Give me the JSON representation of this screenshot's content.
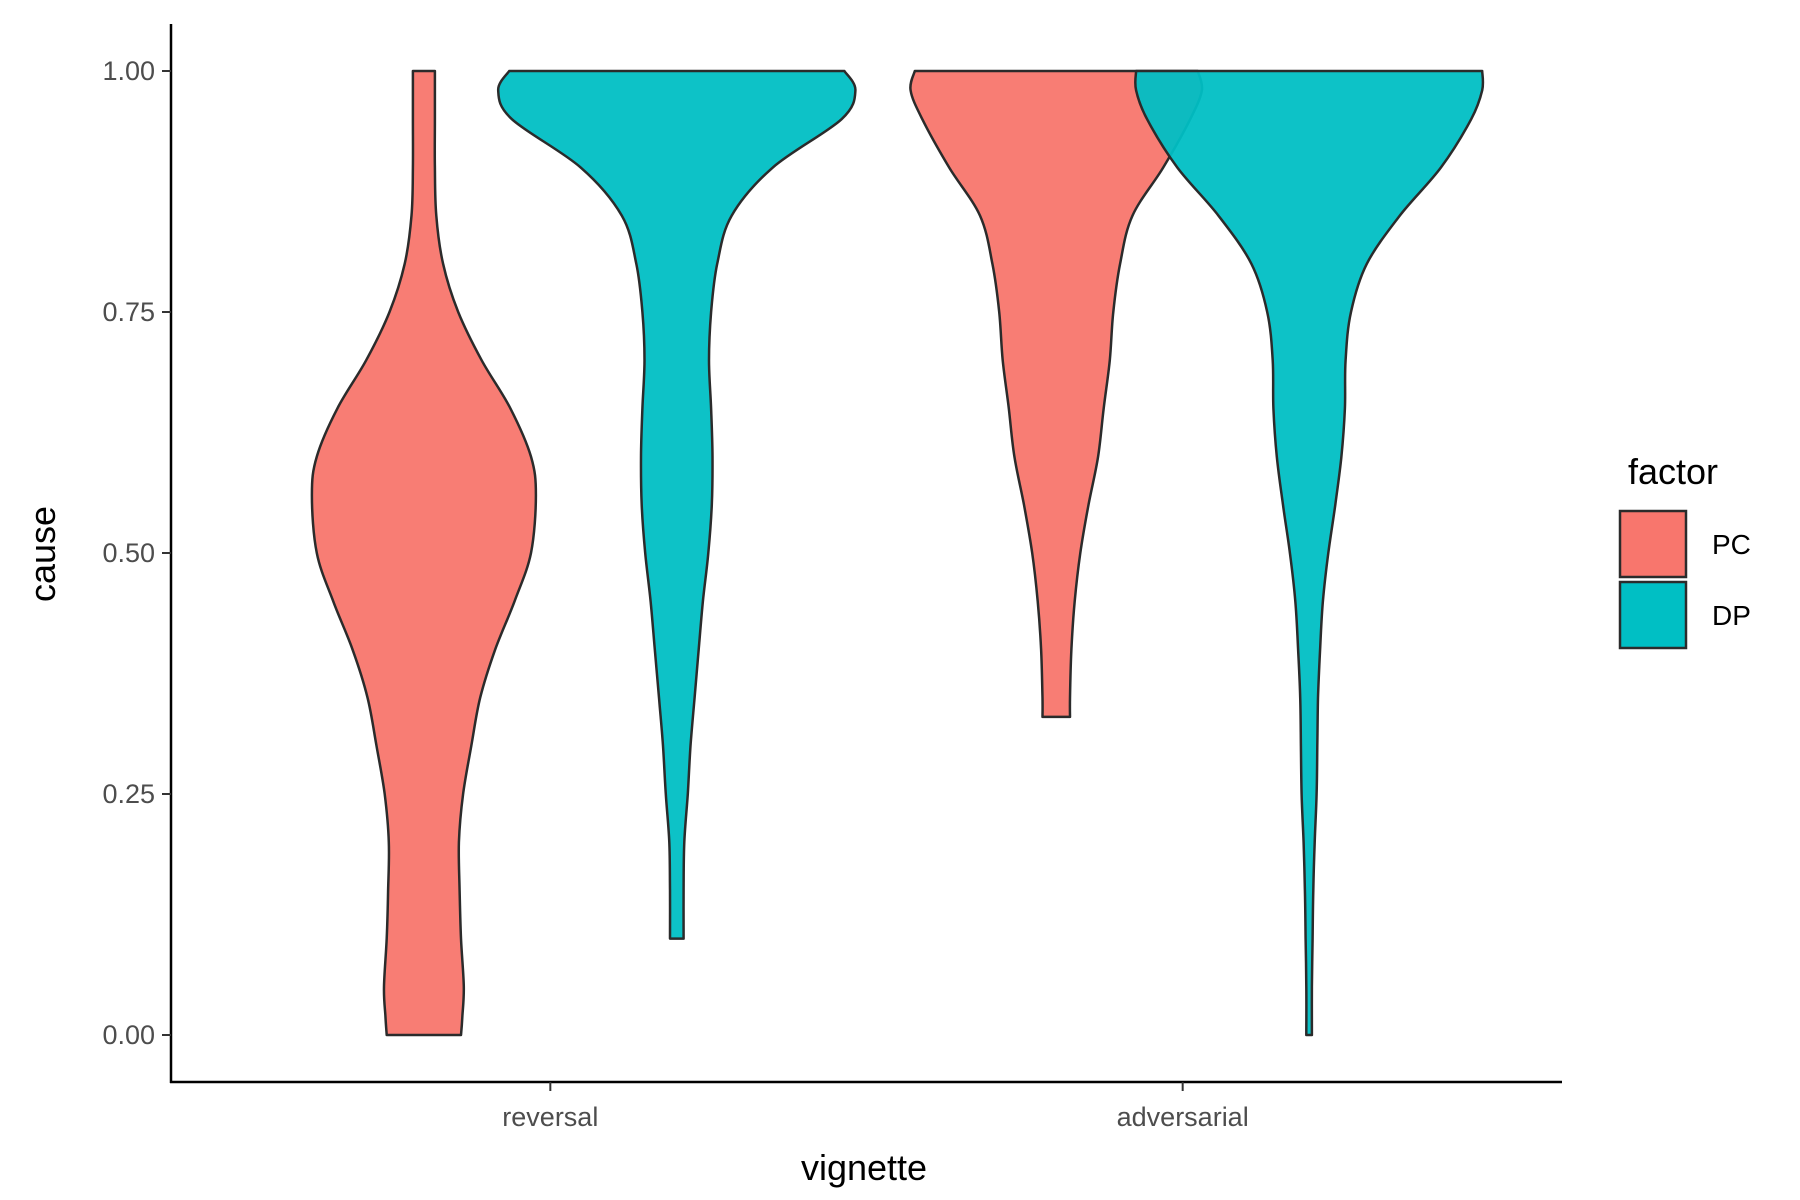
{
  "chart_data": {
    "type": "violin",
    "xlabel": "vignette",
    "ylabel": "cause",
    "categories": [
      "reversal",
      "adversarial"
    ],
    "ylim": [
      -0.05,
      1.05
    ],
    "yticks": [
      "0.00",
      "0.25",
      "0.50",
      "0.75",
      "1.00"
    ],
    "ytick_values": [
      0,
      0.25,
      0.5,
      0.75,
      1.0
    ],
    "grid": false,
    "legend": {
      "title": "factor",
      "position": "right",
      "entries": [
        {
          "label": "PC",
          "color": "#F8766D"
        },
        {
          "label": "DP",
          "color": "#00BFC4"
        }
      ]
    },
    "series": [
      {
        "name": "PC",
        "color": "#F8766D",
        "category": "reversal",
        "profile": [
          [
            0.0,
            0.0267
          ],
          [
            0.02,
            0.0277
          ],
          [
            0.05,
            0.0287
          ],
          [
            0.1,
            0.0267
          ],
          [
            0.15,
            0.0257
          ],
          [
            0.2,
            0.0252
          ],
          [
            0.25,
            0.0282
          ],
          [
            0.3,
            0.0341
          ],
          [
            0.35,
            0.0405
          ],
          [
            0.4,
            0.0513
          ],
          [
            0.45,
            0.0652
          ],
          [
            0.5,
            0.077
          ],
          [
            0.56,
            0.0805
          ],
          [
            0.6,
            0.077
          ],
          [
            0.65,
            0.0622
          ],
          [
            0.7,
            0.0415
          ],
          [
            0.75,
            0.0247
          ],
          [
            0.8,
            0.0138
          ],
          [
            0.85,
            0.0089
          ],
          [
            0.9,
            0.0079
          ],
          [
            0.95,
            0.0079
          ],
          [
            1.0,
            0.0079
          ]
        ]
      },
      {
        "name": "DP",
        "color": "#00BFC4",
        "category": "reversal",
        "profile": [
          [
            0.1,
            0.0049
          ],
          [
            0.15,
            0.0049
          ],
          [
            0.2,
            0.0054
          ],
          [
            0.25,
            0.0079
          ],
          [
            0.3,
            0.0099
          ],
          [
            0.35,
            0.0128
          ],
          [
            0.4,
            0.0158
          ],
          [
            0.45,
            0.0188
          ],
          [
            0.5,
            0.0227
          ],
          [
            0.55,
            0.0252
          ],
          [
            0.6,
            0.0257
          ],
          [
            0.65,
            0.0247
          ],
          [
            0.7,
            0.0232
          ],
          [
            0.75,
            0.0247
          ],
          [
            0.8,
            0.0291
          ],
          [
            0.85,
            0.0395
          ],
          [
            0.9,
            0.0691
          ],
          [
            0.95,
            0.1185
          ],
          [
            0.98,
            0.1284
          ],
          [
            1.0,
            0.1205
          ]
        ]
      },
      {
        "name": "PC",
        "color": "#F8766D",
        "category": "adversarial",
        "profile": [
          [
            0.33,
            0.0099
          ],
          [
            0.35,
            0.0099
          ],
          [
            0.4,
            0.0109
          ],
          [
            0.45,
            0.0133
          ],
          [
            0.5,
            0.0173
          ],
          [
            0.55,
            0.0232
          ],
          [
            0.6,
            0.0301
          ],
          [
            0.65,
            0.0341
          ],
          [
            0.7,
            0.0385
          ],
          [
            0.75,
            0.041
          ],
          [
            0.8,
            0.0459
          ],
          [
            0.85,
            0.0548
          ],
          [
            0.9,
            0.077
          ],
          [
            0.95,
            0.0963
          ],
          [
            0.98,
            0.1047
          ],
          [
            1.0,
            0.1017
          ]
        ]
      },
      {
        "name": "DP",
        "color": "#00BFC4",
        "category": "adversarial",
        "profile": [
          [
            0.0,
            0.002
          ],
          [
            0.05,
            0.002
          ],
          [
            0.1,
            0.0025
          ],
          [
            0.15,
            0.003
          ],
          [
            0.2,
            0.004
          ],
          [
            0.25,
            0.0054
          ],
          [
            0.3,
            0.0059
          ],
          [
            0.35,
            0.0064
          ],
          [
            0.4,
            0.0079
          ],
          [
            0.45,
            0.0099
          ],
          [
            0.5,
            0.0138
          ],
          [
            0.55,
            0.0188
          ],
          [
            0.6,
            0.0232
          ],
          [
            0.65,
            0.0257
          ],
          [
            0.7,
            0.0262
          ],
          [
            0.75,
            0.0301
          ],
          [
            0.8,
            0.0415
          ],
          [
            0.85,
            0.0652
          ],
          [
            0.9,
            0.0948
          ],
          [
            0.95,
            0.1165
          ],
          [
            0.98,
            0.1244
          ],
          [
            1.0,
            0.1244
          ]
        ]
      }
    ]
  }
}
